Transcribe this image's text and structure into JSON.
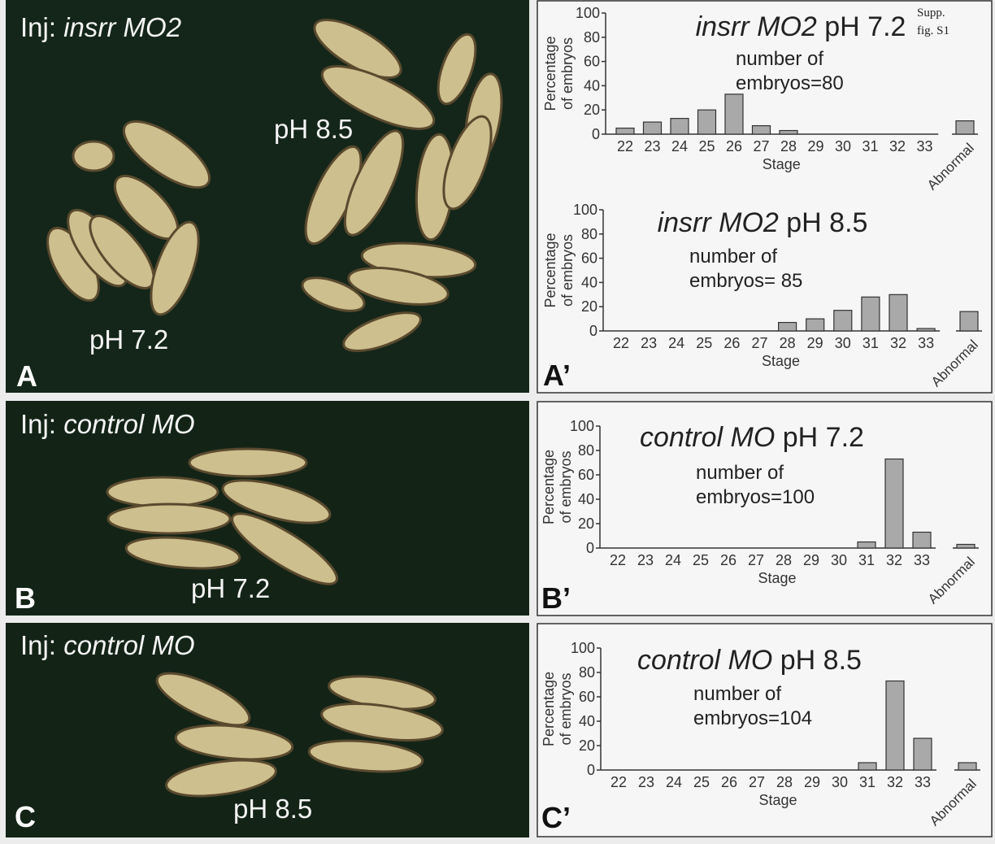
{
  "supp_label": [
    "Supp.",
    "fig. S1"
  ],
  "photos": [
    {
      "letter": "A",
      "injection": [
        "Inj:",
        "insrr MO2"
      ],
      "labels": [
        "pH 8.5",
        "pH 7.2"
      ]
    },
    {
      "letter": "B",
      "injection": [
        "Inj:",
        "control MO"
      ],
      "labels": [
        "pH 7.2"
      ]
    },
    {
      "letter": "C",
      "injection": [
        "Inj:",
        "control MO"
      ],
      "labels": [
        "pH 8.5"
      ]
    }
  ],
  "chart_data": [
    {
      "type": "bar",
      "panel_letter": "A’",
      "title": [
        "insrr MO2",
        "pH 7.2"
      ],
      "annotation": [
        "number of",
        "embryos=80"
      ],
      "ylabel": [
        "Percentage",
        "of embryos"
      ],
      "xlabel": "Stage",
      "categories": [
        "22",
        "23",
        "24",
        "25",
        "26",
        "27",
        "28",
        "29",
        "30",
        "31",
        "32",
        "33",
        "Abnormal"
      ],
      "values": [
        5,
        10,
        13,
        20,
        33,
        7,
        3,
        0,
        0,
        0,
        0,
        0,
        11
      ],
      "ylim": [
        0,
        100
      ],
      "yticks": [
        0,
        20,
        40,
        60,
        80,
        100
      ],
      "color": "#a9a9a9"
    },
    {
      "type": "bar",
      "title": [
        "insrr MO2",
        "pH 8.5"
      ],
      "annotation": [
        "number of",
        "embryos= 85"
      ],
      "ylabel": [
        "Percentage",
        "of embryos"
      ],
      "xlabel": "Stage",
      "categories": [
        "22",
        "23",
        "24",
        "25",
        "26",
        "27",
        "28",
        "29",
        "30",
        "31",
        "32",
        "33",
        "Abnormal"
      ],
      "values": [
        0,
        0,
        0,
        0,
        0,
        0,
        7,
        10,
        17,
        28,
        30,
        2,
        16
      ],
      "ylim": [
        0,
        100
      ],
      "yticks": [
        0,
        20,
        40,
        60,
        80,
        100
      ],
      "color": "#a9a9a9"
    },
    {
      "type": "bar",
      "panel_letter": "B’",
      "title": [
        "control MO",
        "pH 7.2"
      ],
      "annotation": [
        "number of",
        "embryos=100"
      ],
      "ylabel": [
        "Percentage",
        "of embryos"
      ],
      "xlabel": "Stage",
      "categories": [
        "22",
        "23",
        "24",
        "25",
        "26",
        "27",
        "28",
        "29",
        "30",
        "31",
        "32",
        "33",
        "Abnormal"
      ],
      "values": [
        0,
        0,
        0,
        0,
        0,
        0,
        0,
        0,
        0,
        5,
        73,
        13,
        3
      ],
      "ylim": [
        0,
        100
      ],
      "yticks": [
        0,
        20,
        40,
        60,
        80,
        100
      ],
      "color": "#a9a9a9"
    },
    {
      "type": "bar",
      "panel_letter": "C’",
      "title": [
        "control MO",
        "pH 8.5"
      ],
      "annotation": [
        "number of",
        "embryos=104"
      ],
      "ylabel": [
        "Percentage",
        "of embryos"
      ],
      "xlabel": "Stage",
      "categories": [
        "22",
        "23",
        "24",
        "25",
        "26",
        "27",
        "28",
        "29",
        "30",
        "31",
        "32",
        "33",
        "Abnormal"
      ],
      "values": [
        0,
        0,
        0,
        0,
        0,
        0,
        0,
        0,
        0,
        6,
        73,
        26,
        6
      ],
      "ylim": [
        0,
        100
      ],
      "yticks": [
        0,
        20,
        40,
        60,
        80,
        100
      ],
      "color": "#a9a9a9"
    }
  ]
}
